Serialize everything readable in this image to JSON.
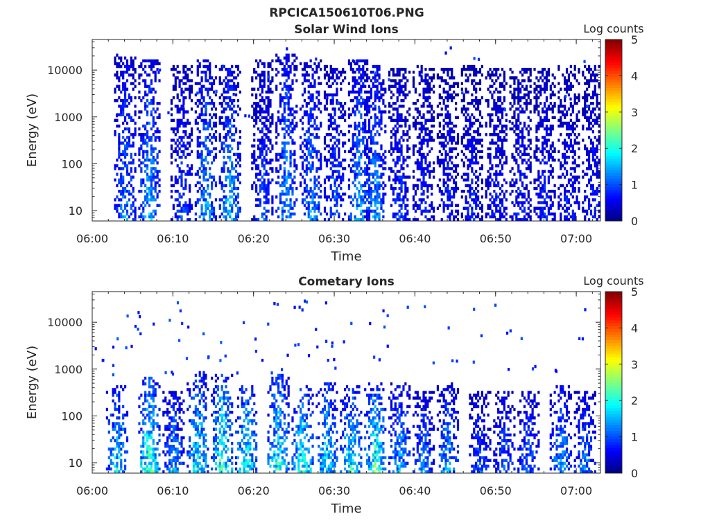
{
  "figure_title": "RPCICA150610T06.PNG",
  "chart_data": [
    {
      "type": "heatmap",
      "title": "Solar Wind Ions",
      "xlabel": "Time",
      "ylabel": "Energy (eV)",
      "x_ticks": [
        "06:00",
        "06:10",
        "06:20",
        "06:30",
        "06:40",
        "06:50",
        "07:00"
      ],
      "y_ticks": [
        "10",
        "100",
        "1000",
        "10000"
      ],
      "y_tick_values": [
        10,
        100,
        1000,
        10000
      ],
      "y_scale": "log",
      "xlim": [
        "06:00",
        "07:03"
      ],
      "ylim": [
        6,
        45000
      ],
      "colorbar": {
        "label": "Log counts",
        "ticks": [
          "0",
          "1",
          "2",
          "3",
          "4",
          "5"
        ],
        "range": [
          0,
          5
        ],
        "colormap": "jet"
      },
      "bursts": [
        {
          "t": "06:04",
          "top_eV": 20000,
          "peak_log": 1.6
        },
        {
          "t": "06:07",
          "top_eV": 15000,
          "peak_log": 1.9
        },
        {
          "t": "06:11",
          "top_eV": 12000,
          "peak_log": 1.2
        },
        {
          "t": "06:14",
          "top_eV": 15000,
          "peak_log": 1.8
        },
        {
          "t": "06:17",
          "top_eV": 12000,
          "peak_log": 1.9
        },
        {
          "t": "06:21",
          "top_eV": 15000,
          "peak_log": 1.2
        },
        {
          "t": "06:24",
          "top_eV": 20000,
          "peak_log": 1.8
        },
        {
          "t": "06:27",
          "top_eV": 15000,
          "peak_log": 1.7
        },
        {
          "t": "06:30",
          "top_eV": 12000,
          "peak_log": 1.3
        },
        {
          "t": "06:33",
          "top_eV": 15000,
          "peak_log": 1.8
        },
        {
          "t": "06:35",
          "top_eV": 12000,
          "peak_log": 1.7
        },
        {
          "t": "06:38",
          "top_eV": 10000,
          "peak_log": 1.1
        },
        {
          "t": "06:41",
          "top_eV": 12000,
          "peak_log": 1.0
        },
        {
          "t": "06:44",
          "top_eV": 10000,
          "peak_log": 1.0
        },
        {
          "t": "06:47",
          "top_eV": 12000,
          "peak_log": 1.0
        },
        {
          "t": "06:50",
          "top_eV": 10000,
          "peak_log": 1.0
        },
        {
          "t": "06:53",
          "top_eV": 10000,
          "peak_log": 1.0
        },
        {
          "t": "06:56",
          "top_eV": 10000,
          "peak_log": 1.0
        },
        {
          "t": "06:59",
          "top_eV": 12000,
          "peak_log": 1.0
        },
        {
          "t": "07:02",
          "top_eV": 12000,
          "peak_log": 1.0
        }
      ]
    },
    {
      "type": "heatmap",
      "title": "Cometary Ions",
      "xlabel": "Time",
      "ylabel": "Energy (eV)",
      "x_ticks": [
        "06:00",
        "06:10",
        "06:20",
        "06:30",
        "06:40",
        "06:50",
        "07:00"
      ],
      "y_ticks": [
        "10",
        "100",
        "1000",
        "10000"
      ],
      "y_tick_values": [
        10,
        100,
        1000,
        10000
      ],
      "y_scale": "log",
      "xlim": [
        "06:00",
        "07:03"
      ],
      "ylim": [
        6,
        45000
      ],
      "colorbar": {
        "label": "Log counts",
        "ticks": [
          "0",
          "1",
          "2",
          "3",
          "4",
          "5"
        ],
        "range": [
          0,
          5
        ],
        "colormap": "jet"
      },
      "bursts": [
        {
          "t": "06:03",
          "top_eV": 400,
          "peak_log": 2.2
        },
        {
          "t": "06:07",
          "top_eV": 600,
          "peak_log": 2.9
        },
        {
          "t": "06:10",
          "top_eV": 300,
          "peak_log": 1.8
        },
        {
          "t": "06:13",
          "top_eV": 800,
          "peak_log": 2.5
        },
        {
          "t": "06:16",
          "top_eV": 700,
          "peak_log": 2.8
        },
        {
          "t": "06:19",
          "top_eV": 400,
          "peak_log": 2.6
        },
        {
          "t": "06:23",
          "top_eV": 700,
          "peak_log": 2.7
        },
        {
          "t": "06:26",
          "top_eV": 400,
          "peak_log": 2.6
        },
        {
          "t": "06:29",
          "top_eV": 500,
          "peak_log": 2.4
        },
        {
          "t": "06:32",
          "top_eV": 400,
          "peak_log": 2.5
        },
        {
          "t": "06:35",
          "top_eV": 500,
          "peak_log": 2.8
        },
        {
          "t": "06:38",
          "top_eV": 500,
          "peak_log": 2.0
        },
        {
          "t": "06:41",
          "top_eV": 300,
          "peak_log": 1.6
        },
        {
          "t": "06:44",
          "top_eV": 500,
          "peak_log": 1.8
        },
        {
          "t": "06:48",
          "top_eV": 300,
          "peak_log": 1.4
        },
        {
          "t": "06:51",
          "top_eV": 300,
          "peak_log": 1.4
        },
        {
          "t": "06:54",
          "top_eV": 300,
          "peak_log": 1.5
        },
        {
          "t": "06:58",
          "top_eV": 400,
          "peak_log": 1.8
        },
        {
          "t": "07:01",
          "top_eV": 300,
          "peak_log": 1.6
        }
      ]
    }
  ]
}
